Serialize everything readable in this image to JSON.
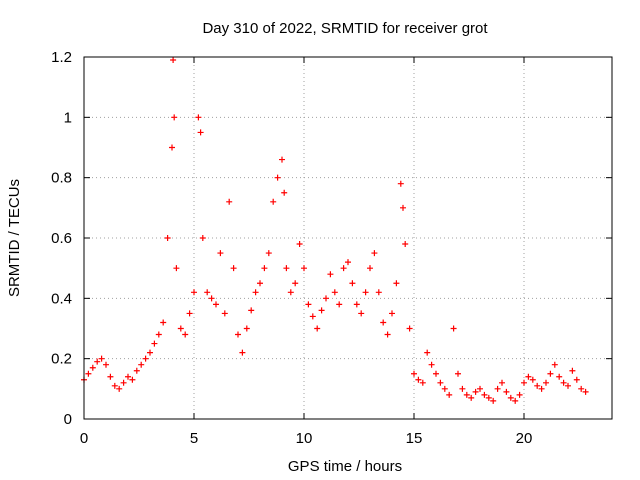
{
  "chart_data": {
    "type": "scatter",
    "title": "Day 310 of 2022, SRMTID for receiver grot",
    "xlabel": "GPS time / hours",
    "ylabel": "SRMTID / TECUs",
    "xlim": [
      0,
      24
    ],
    "ylim": [
      0,
      1.2
    ],
    "xticks": [
      "0",
      "5",
      "10",
      "15",
      "20"
    ],
    "yticks": [
      "0",
      "0.2",
      "0.4",
      "0.6",
      "0.8",
      "1",
      "1.2"
    ],
    "grid": true,
    "marker": "plus",
    "color": "#ff0000",
    "series": [
      {
        "name": "SRMTID",
        "x": [
          0.0,
          0.2,
          0.4,
          0.6,
          0.8,
          1.0,
          1.2,
          1.4,
          1.6,
          1.8,
          2.0,
          2.2,
          2.4,
          2.6,
          2.8,
          3.0,
          3.2,
          3.4,
          3.6,
          3.8,
          4.0,
          4.05,
          4.1,
          4.2,
          4.4,
          4.6,
          4.8,
          5.0,
          5.2,
          5.3,
          5.4,
          5.6,
          5.8,
          6.0,
          6.2,
          6.4,
          6.6,
          6.8,
          7.0,
          7.2,
          7.4,
          7.6,
          7.8,
          8.0,
          8.2,
          8.4,
          8.6,
          8.8,
          9.0,
          9.1,
          9.2,
          9.4,
          9.6,
          9.8,
          10.0,
          10.2,
          10.4,
          10.6,
          10.8,
          11.0,
          11.2,
          11.4,
          11.6,
          11.8,
          12.0,
          12.2,
          12.4,
          12.6,
          12.8,
          13.0,
          13.2,
          13.4,
          13.6,
          13.8,
          14.0,
          14.2,
          14.4,
          14.5,
          14.6,
          14.8,
          15.0,
          15.2,
          15.4,
          15.6,
          15.8,
          16.0,
          16.2,
          16.4,
          16.6,
          16.8,
          17.0,
          17.2,
          17.4,
          17.6,
          17.8,
          18.0,
          18.2,
          18.4,
          18.6,
          18.8,
          19.0,
          19.2,
          19.4,
          19.6,
          19.8,
          20.0,
          20.2,
          20.4,
          20.6,
          20.8,
          21.0,
          21.2,
          21.4,
          21.6,
          21.8,
          22.0,
          22.2,
          22.4,
          22.6,
          22.8
        ],
        "y": [
          0.13,
          0.15,
          0.17,
          0.19,
          0.2,
          0.18,
          0.14,
          0.11,
          0.1,
          0.12,
          0.14,
          0.13,
          0.16,
          0.18,
          0.2,
          0.22,
          0.25,
          0.28,
          0.32,
          0.6,
          0.9,
          1.19,
          1.0,
          0.5,
          0.3,
          0.28,
          0.35,
          0.42,
          1.0,
          0.95,
          0.6,
          0.42,
          0.4,
          0.38,
          0.55,
          0.35,
          0.72,
          0.5,
          0.28,
          0.22,
          0.3,
          0.36,
          0.42,
          0.45,
          0.5,
          0.55,
          0.72,
          0.8,
          0.86,
          0.75,
          0.5,
          0.42,
          0.45,
          0.58,
          0.5,
          0.38,
          0.34,
          0.3,
          0.36,
          0.4,
          0.48,
          0.42,
          0.38,
          0.5,
          0.52,
          0.45,
          0.38,
          0.35,
          0.42,
          0.5,
          0.55,
          0.42,
          0.32,
          0.28,
          0.35,
          0.45,
          0.78,
          0.7,
          0.58,
          0.3,
          0.15,
          0.13,
          0.12,
          0.22,
          0.18,
          0.15,
          0.12,
          0.1,
          0.08,
          0.3,
          0.15,
          0.1,
          0.08,
          0.07,
          0.09,
          0.1,
          0.08,
          0.07,
          0.06,
          0.1,
          0.12,
          0.09,
          0.07,
          0.06,
          0.08,
          0.12,
          0.14,
          0.13,
          0.11,
          0.1,
          0.12,
          0.15,
          0.18,
          0.14,
          0.12,
          0.11,
          0.16,
          0.13,
          0.1,
          0.09
        ]
      }
    ]
  }
}
